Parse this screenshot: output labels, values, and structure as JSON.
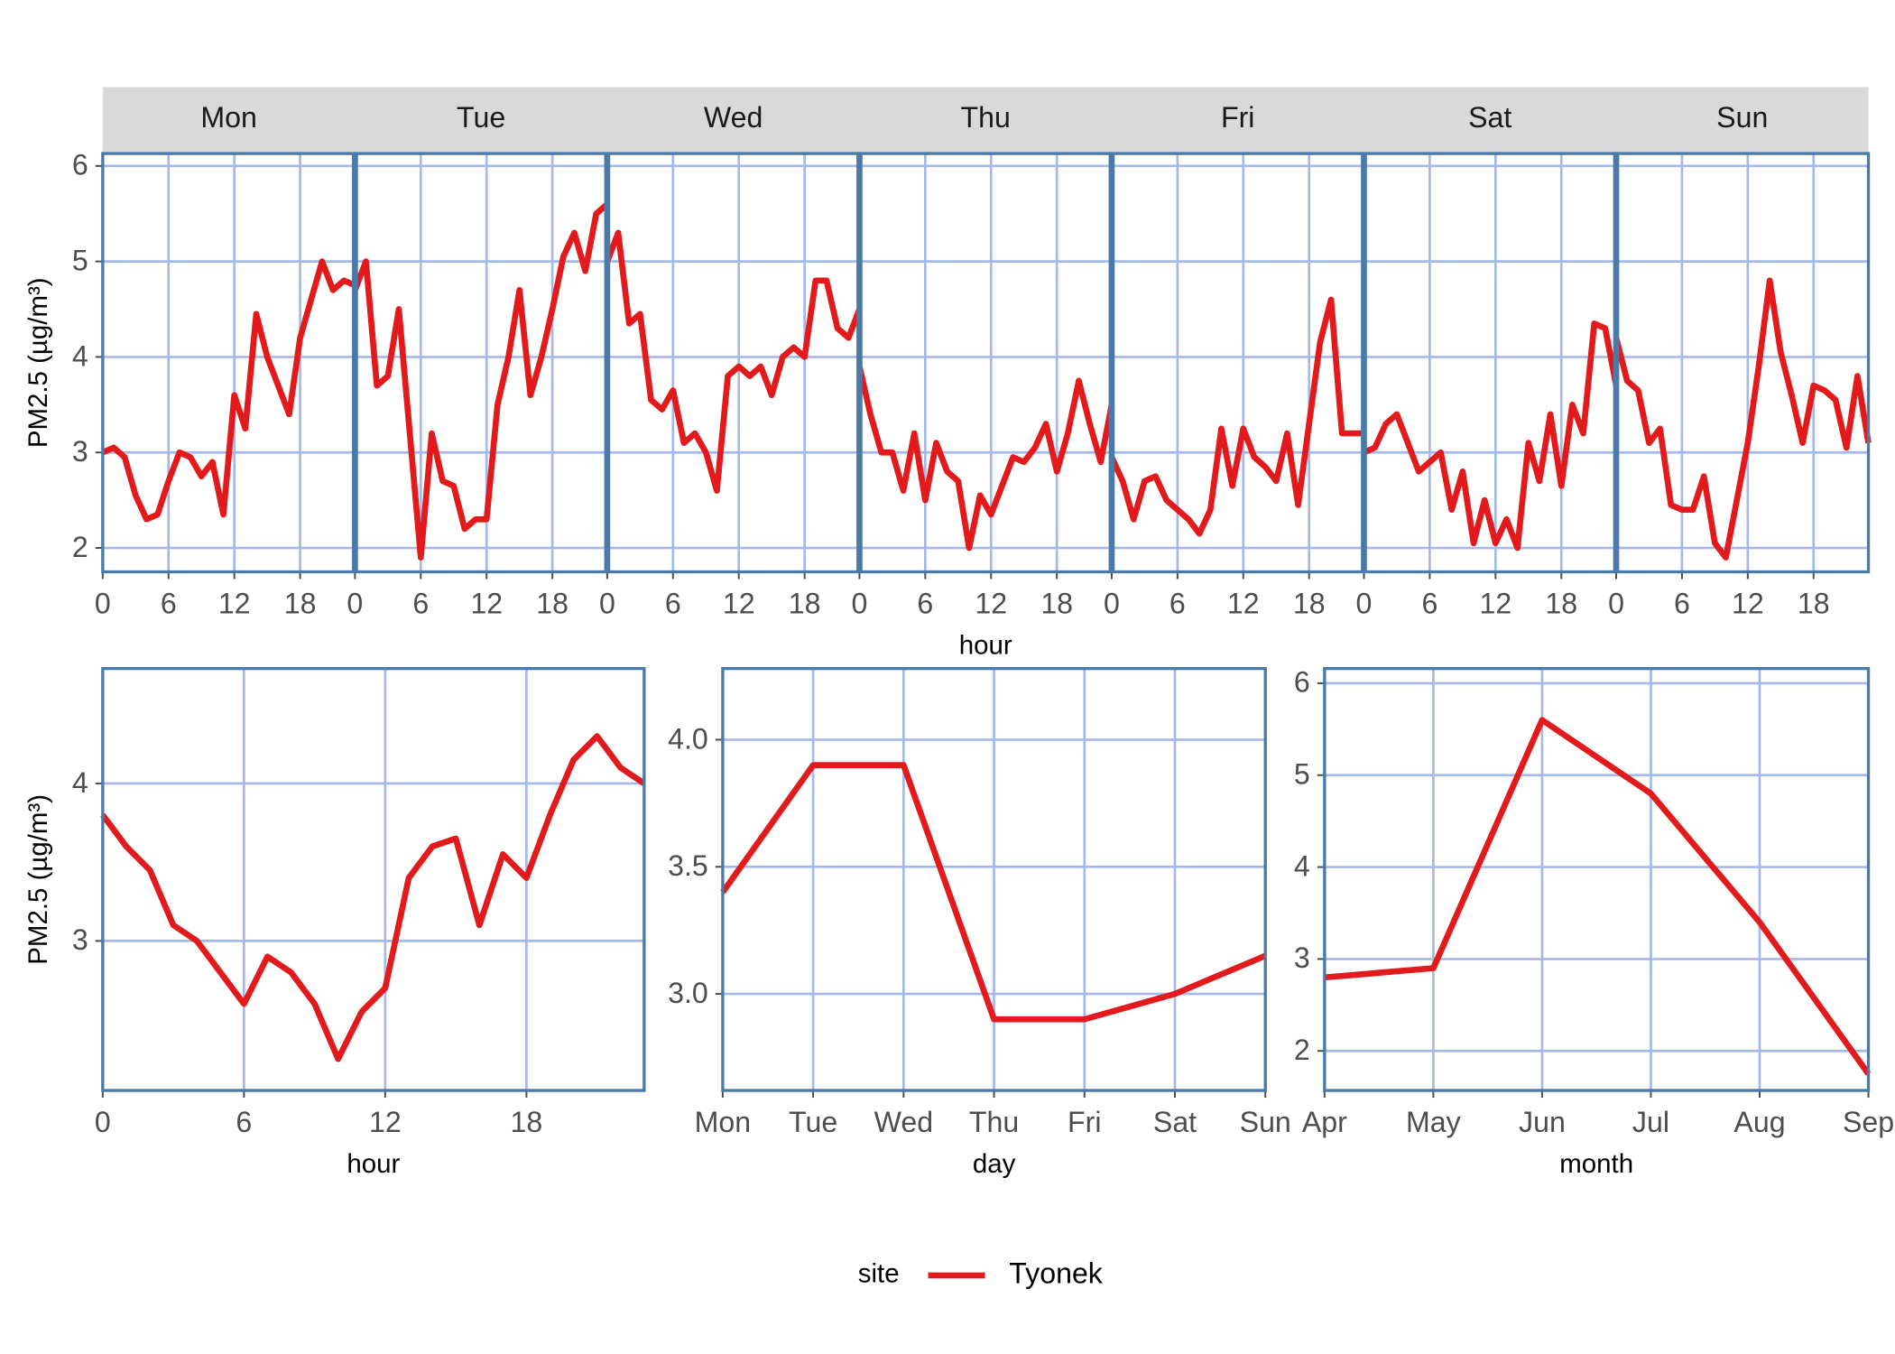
{
  "chart_data": [
    {
      "type": "line",
      "x_label": "hour",
      "y_label": "PM2.5 (µg/m³)",
      "x": [
        0,
        1,
        2,
        3,
        4,
        5,
        6,
        7,
        8,
        9,
        10,
        11,
        12,
        13,
        14,
        15,
        16,
        17,
        18,
        19,
        20,
        21,
        22,
        23
      ],
      "xlim": [
        0,
        23
      ],
      "xticks": [
        0,
        6,
        12,
        18
      ],
      "ylim": [
        1.75,
        6.13
      ],
      "yticks": [
        2,
        3,
        4,
        5,
        6
      ],
      "grid": true,
      "facets": [
        {
          "title": "Mon",
          "values": [
            3.0,
            3.05,
            2.95,
            2.55,
            2.3,
            2.35,
            2.7,
            3.0,
            2.95,
            2.75,
            2.9,
            2.35,
            3.6,
            3.25,
            4.45,
            4.0,
            3.7,
            3.4,
            4.2,
            4.6,
            5.0,
            4.7,
            4.8,
            4.75
          ]
        },
        {
          "title": "Tue",
          "values": [
            4.7,
            5.0,
            3.7,
            3.8,
            4.5,
            3.2,
            1.9,
            3.2,
            2.7,
            2.65,
            2.2,
            2.3,
            2.3,
            3.5,
            4.0,
            4.7,
            3.6,
            4.0,
            4.5,
            5.05,
            5.3,
            4.9,
            5.5,
            5.6
          ]
        },
        {
          "title": "Wed",
          "values": [
            5.0,
            5.3,
            4.35,
            4.45,
            3.55,
            3.45,
            3.65,
            3.1,
            3.2,
            3.0,
            2.6,
            3.8,
            3.9,
            3.8,
            3.9,
            3.6,
            4.0,
            4.1,
            4.0,
            4.8,
            4.8,
            4.3,
            4.2,
            4.5
          ]
        },
        {
          "title": "Thu",
          "values": [
            3.9,
            3.4,
            3.0,
            3.0,
            2.6,
            3.2,
            2.5,
            3.1,
            2.8,
            2.7,
            2.0,
            2.55,
            2.35,
            2.65,
            2.95,
            2.9,
            3.05,
            3.3,
            2.8,
            3.2,
            3.75,
            3.3,
            2.9,
            3.5
          ]
        },
        {
          "title": "Fri",
          "values": [
            2.95,
            2.7,
            2.3,
            2.7,
            2.75,
            2.5,
            2.4,
            2.3,
            2.15,
            2.4,
            3.25,
            2.65,
            3.25,
            2.95,
            2.85,
            2.7,
            3.2,
            2.45,
            3.3,
            4.15,
            4.6,
            3.2,
            3.2,
            3.2
          ]
        },
        {
          "title": "Sat",
          "values": [
            3.0,
            3.05,
            3.3,
            3.4,
            3.1,
            2.8,
            2.9,
            3.0,
            2.4,
            2.8,
            2.05,
            2.5,
            2.05,
            2.3,
            2.0,
            3.1,
            2.7,
            3.4,
            2.65,
            3.5,
            3.2,
            4.35,
            4.3,
            3.7
          ]
        },
        {
          "title": "Sun",
          "values": [
            4.2,
            3.75,
            3.65,
            3.1,
            3.25,
            2.45,
            2.4,
            2.4,
            2.75,
            2.05,
            1.9,
            2.5,
            3.1,
            3.9,
            4.8,
            4.05,
            3.6,
            3.1,
            3.7,
            3.65,
            3.55,
            3.05,
            3.8,
            3.1
          ]
        }
      ]
    },
    {
      "type": "line",
      "x_label": "hour",
      "y_label": "PM2.5 (µg/m³)",
      "x": [
        0,
        1,
        2,
        3,
        4,
        5,
        6,
        7,
        8,
        9,
        10,
        11,
        12,
        13,
        14,
        15,
        16,
        17,
        18,
        19,
        20,
        21,
        22,
        23
      ],
      "xlim": [
        0,
        23
      ],
      "xticks": [
        0,
        6,
        12,
        18
      ],
      "ylim": [
        2.05,
        4.73
      ],
      "yticks": [
        3,
        4
      ],
      "grid": true,
      "values": [
        3.8,
        3.6,
        3.45,
        3.1,
        3.0,
        2.8,
        2.6,
        2.9,
        2.8,
        2.6,
        2.25,
        2.55,
        2.7,
        3.4,
        3.6,
        3.65,
        3.1,
        3.55,
        3.4,
        3.8,
        4.15,
        4.3,
        4.1,
        4.0
      ]
    },
    {
      "type": "line",
      "x_label": "day",
      "categories": [
        "Mon",
        "Tue",
        "Wed",
        "Thu",
        "Fri",
        "Sat",
        "Sun"
      ],
      "ylim": [
        2.62,
        4.28
      ],
      "yticks": [
        {
          "value": 3,
          "label": "3.0"
        },
        3.5,
        {
          "value": 4,
          "label": "4.0"
        }
      ],
      "grid": true,
      "values": [
        3.4,
        3.9,
        3.9,
        2.9,
        2.9,
        3.0,
        3.15
      ]
    },
    {
      "type": "line",
      "x_label": "month",
      "categories": [
        "Apr",
        "May",
        "Jun",
        "Jul",
        "Aug",
        "Sep"
      ],
      "ylim": [
        1.57,
        6.16
      ],
      "yticks": [
        2,
        3,
        4,
        5,
        6
      ],
      "grid": true,
      "values": [
        2.8,
        2.9,
        5.6,
        4.8,
        3.4,
        1.75
      ]
    }
  ],
  "legend": {
    "title": "site",
    "series": [
      {
        "name": "Tyonek",
        "color": "#e31a1c"
      }
    ]
  }
}
